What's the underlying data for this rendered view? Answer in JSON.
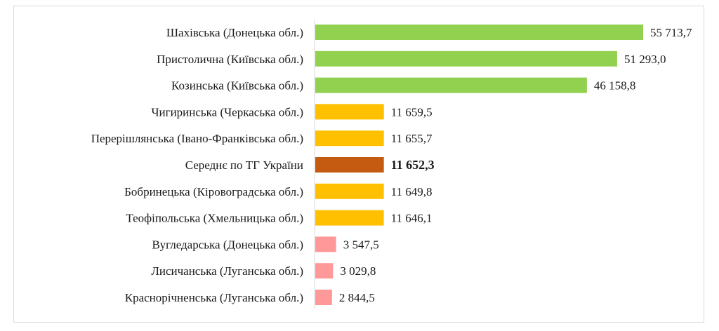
{
  "chart_data": {
    "type": "bar",
    "orientation": "horizontal",
    "categories": [
      "Шахівська (Донецька обл.)",
      "Пристолична (Київська обл.)",
      "Козинська (Київська обл.)",
      "Чигиринська (Черкаська обл.)",
      "Перерішлянська (Івано-Франківська обл.)",
      "Середнє по ТГ України",
      "Бобринецька (Кіровоградська обл.)",
      "Теофіпольська (Хмельницька обл.)",
      "Вугледарська (Донецька обл.)",
      "Лисичанська (Луганська обл.)",
      "Краснорічненська (Луганська обл.)"
    ],
    "values": [
      55713.7,
      51293.0,
      46158.8,
      11659.5,
      11655.7,
      11652.3,
      11649.8,
      11646.1,
      3547.5,
      3029.8,
      2844.5
    ],
    "value_labels": [
      "55 713,7",
      "51 293,0",
      "46 158,8",
      "11 659,5",
      "11 655,7",
      "11 652,3",
      "11 649,8",
      "11 646,1",
      "3 547,5",
      "3 029,8",
      "2 844,5"
    ],
    "highlighted_index": 5,
    "bar_colors": [
      "#92d050",
      "#92d050",
      "#92d050",
      "#ffc000",
      "#ffc000",
      "#c55a11",
      "#ffc000",
      "#ffc000",
      "#ff9999",
      "#ff9999",
      "#ff9999"
    ],
    "title": "",
    "xlabel": "",
    "ylabel": "",
    "xlim": [
      0,
      55713.7
    ],
    "grid": false,
    "legend": "none"
  }
}
